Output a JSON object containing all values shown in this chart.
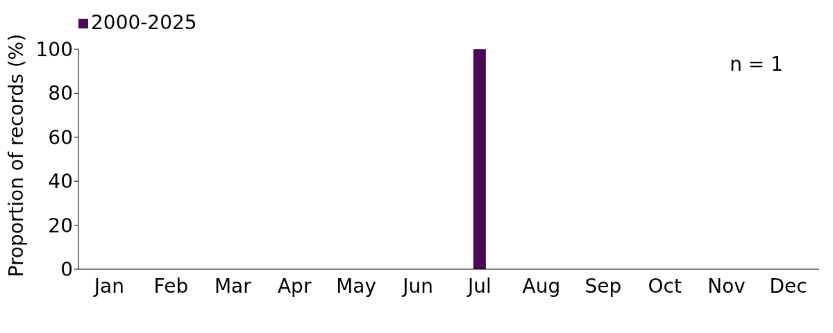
{
  "chart_data": {
    "type": "bar",
    "ylabel": "Proportion of records (%)",
    "categories": [
      "Jan",
      "Feb",
      "Mar",
      "Apr",
      "May",
      "Jun",
      "Jul",
      "Aug",
      "Sep",
      "Oct",
      "Nov",
      "Dec"
    ],
    "series": [
      {
        "name": "2000-2025",
        "color": "#4a0a55",
        "values": [
          0,
          0,
          0,
          0,
          0,
          0,
          100,
          0,
          0,
          0,
          0,
          0
        ]
      }
    ],
    "ylim": [
      0,
      100
    ],
    "yticks": [
      0,
      20,
      40,
      60,
      80,
      100
    ],
    "grid": false,
    "legend": "top left",
    "annotations": [
      "n = 1"
    ]
  }
}
